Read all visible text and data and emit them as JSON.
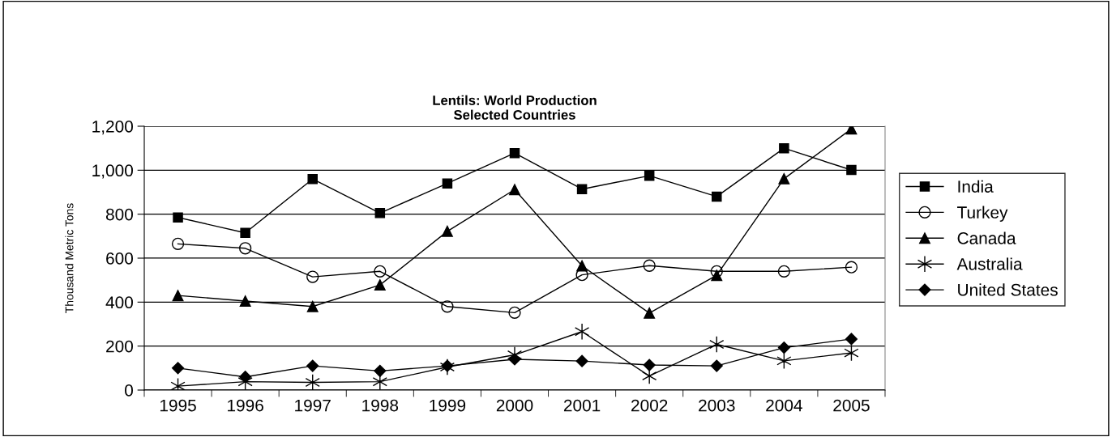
{
  "chart_data": {
    "type": "line",
    "title": "Lentils: World Production\nSelected Countries",
    "ylabel": "Thousand Metric Tons",
    "categories": [
      "1995",
      "1996",
      "1997",
      "1998",
      "1999",
      "2000",
      "2001",
      "2002",
      "2003",
      "2004",
      "2005"
    ],
    "series": [
      {
        "name": "India",
        "color": "#000000",
        "marker": "square",
        "values": [
          785,
          715,
          960,
          805,
          940,
          1078,
          914,
          975,
          880,
          1100,
          1001
        ]
      },
      {
        "name": "Turkey",
        "color": "#000000",
        "marker": "circle",
        "values": [
          665,
          645,
          515,
          540,
          380,
          352,
          524,
          566,
          540,
          540,
          559
        ]
      },
      {
        "name": "Canada",
        "color": "#000000",
        "marker": "triangle",
        "values": [
          430,
          405,
          380,
          478,
          722,
          912,
          565,
          350,
          522,
          961,
          1188
        ]
      },
      {
        "name": "Australia",
        "color": "#000000",
        "marker": "cross",
        "values": [
          18,
          38,
          35,
          38,
          105,
          160,
          266,
          64,
          208,
          133,
          169
        ]
      },
      {
        "name": "United States",
        "color": "#000000",
        "marker": "diamond",
        "values": [
          100,
          60,
          110,
          87,
          110,
          140,
          132,
          114,
          110,
          193,
          232
        ]
      }
    ],
    "ylim": [
      0,
      1200
    ],
    "yticks": [
      {
        "value": 0,
        "label": "0"
      },
      {
        "value": 200,
        "label": "200"
      },
      {
        "value": 400,
        "label": "400"
      },
      {
        "value": 600,
        "label": "600"
      },
      {
        "value": 800,
        "label": "800"
      },
      {
        "value": 1000,
        "label": "1,000"
      },
      {
        "value": 1200,
        "label": "1,200"
      }
    ],
    "grid": "y",
    "legend": "right",
    "line_style": "solid"
  }
}
